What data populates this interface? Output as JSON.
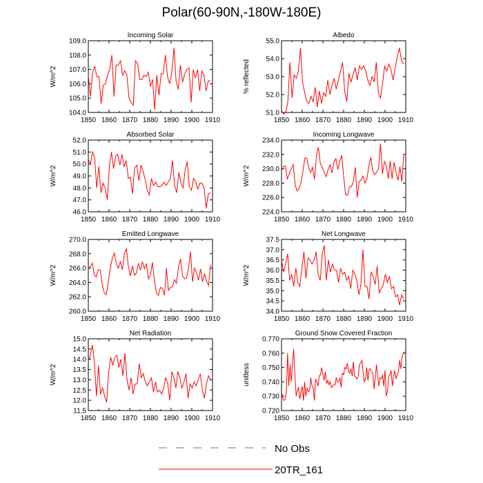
{
  "figure": {
    "title": "Polar(60-90N,-180W-180E)"
  },
  "legend": {
    "items": [
      {
        "label": "No Obs",
        "style": "dashed",
        "color": "#6a6ab0"
      },
      {
        "label": "20TR_161",
        "style": "solid",
        "color": "#ff0000"
      }
    ]
  },
  "colors": {
    "series": "#ff0000",
    "axis": "#000000"
  },
  "chart_data": [
    {
      "type": "line",
      "title": "Incoming Solar",
      "xlabel": "",
      "ylabel": "W/m^2",
      "xlim": [
        1850,
        1910
      ],
      "ylim": [
        104.0,
        109.0
      ],
      "xticks": [
        1850,
        1860,
        1870,
        1880,
        1890,
        1900,
        1910
      ],
      "yticks": [
        "104.0",
        "105.0",
        "106.0",
        "107.0",
        "108.0",
        "109.0"
      ],
      "x_start": 1850,
      "values": [
        106.6,
        105.1,
        106.8,
        107.2,
        106.5,
        106.5,
        104.6,
        105.9,
        106.0,
        106.6,
        107.0,
        108.0,
        105.1,
        107.3,
        107.3,
        107.6,
        106.6,
        106.9,
        106.6,
        105.0,
        104.7,
        104.5,
        107.6,
        107.4,
        106.3,
        106.3,
        106.6,
        106.5,
        106.8,
        105.8,
        106.3,
        104.2,
        106.6,
        105.2,
        106.7,
        106.7,
        108.0,
        106.5,
        106.0,
        106.8,
        108.5,
        106.2,
        105.6,
        107.3,
        106.1,
        106.7,
        107.0,
        107.1,
        104.7,
        107.0,
        106.4,
        107.0,
        105.5,
        106.9,
        106.6,
        105.5,
        106.2,
        106.2
      ]
    },
    {
      "type": "line",
      "title": "Albedo",
      "xlabel": "",
      "ylabel": "% reflected",
      "xlim": [
        1850,
        1910
      ],
      "ylim": [
        51.0,
        55.0
      ],
      "xticks": [
        1850,
        1860,
        1870,
        1880,
        1890,
        1900,
        1910
      ],
      "yticks": [
        "51.0",
        "52.0",
        "53.0",
        "54.0",
        "55.0"
      ],
      "x_start": 1850,
      "values": [
        51.1,
        50.9,
        51.0,
        51.6,
        53.8,
        51.8,
        53.1,
        52.9,
        53.3,
        54.6,
        52.7,
        52.1,
        51.6,
        51.5,
        51.9,
        51.6,
        52.4,
        51.3,
        52.2,
        51.5,
        52.1,
        51.9,
        52.8,
        52.0,
        52.5,
        52.9,
        52.3,
        52.8,
        53.3,
        53.8,
        52.2,
        51.6,
        53.2,
        52.7,
        53.1,
        53.5,
        52.8,
        53.6,
        53.4,
        53.6,
        53.3,
        52.8,
        52.5,
        53.0,
        52.7,
        53.8,
        52.1,
        51.8,
        52.6,
        53.6,
        53.3,
        53.7,
        53.4,
        52.8,
        53.5,
        54.1,
        54.6,
        53.9,
        53.7
      ]
    },
    {
      "type": "line",
      "title": "Absorbed Solar",
      "xlabel": "",
      "ylabel": "W/m^2",
      "xlim": [
        1850,
        1910
      ],
      "ylim": [
        46.0,
        52.0
      ],
      "xticks": [
        1850,
        1860,
        1870,
        1880,
        1890,
        1900,
        1910
      ],
      "yticks": [
        "46.0",
        "47.0",
        "48.0",
        "49.0",
        "50.0",
        "51.0",
        "52.0"
      ],
      "x_start": 1850,
      "values": [
        50.4,
        50.0,
        51.0,
        50.5,
        48.0,
        49.8,
        47.6,
        48.4,
        48.0,
        47.0,
        49.8,
        51.0,
        49.6,
        50.7,
        50.8,
        49.9,
        50.8,
        49.8,
        50.3,
        48.8,
        48.9,
        47.5,
        49.7,
        49.9,
        48.6,
        49.9,
        49.4,
        48.7,
        47.8,
        47.4,
        48.8,
        48.2,
        48.5,
        48.1,
        48.1,
        48.2,
        48.5,
        48.2,
        48.5,
        48.8,
        50.3,
        48.2,
        47.6,
        49.3,
        48.4,
        48.0,
        49.5,
        50.2,
        48.1,
        47.8,
        48.8,
        48.5,
        47.9,
        48.4,
        48.4,
        48.0,
        46.3,
        47.5,
        47.6
      ]
    },
    {
      "type": "line",
      "title": "Incoming Longwave",
      "xlabel": "",
      "ylabel": "W/m^2",
      "xlim": [
        1850,
        1910
      ],
      "ylim": [
        224.0,
        234.0
      ],
      "xticks": [
        1850,
        1860,
        1870,
        1880,
        1890,
        1900,
        1910
      ],
      "yticks": [
        "224.0",
        "226.0",
        "228.0",
        "230.0",
        "232.0",
        "234.0"
      ],
      "x_start": 1850,
      "values": [
        229.7,
        230.3,
        230.4,
        228.6,
        229.3,
        230.0,
        230.6,
        227.8,
        226.9,
        227.2,
        228.0,
        229.6,
        231.5,
        231.5,
        230.1,
        229.5,
        230.2,
        228.5,
        231.8,
        233.0,
        230.7,
        230.2,
        229.5,
        228.9,
        229.9,
        230.6,
        229.4,
        230.9,
        231.4,
        229.9,
        231.0,
        231.9,
        229.0,
        226.4,
        226.3,
        227.5,
        227.5,
        228.2,
        230.2,
        226.0,
        228.2,
        228.4,
        229.0,
        228.0,
        228.6,
        230.4,
        231.6,
        229.7,
        229.2,
        229.5,
        230.0,
        233.5,
        229.3,
        231.0,
        230.4,
        228.6,
        231.1,
        228.6,
        230.9,
        229.5,
        228.4,
        230.3,
        228.2,
        231.9
      ]
    },
    {
      "type": "line",
      "title": "Emitted Longwave",
      "xlabel": "",
      "ylabel": "W/m^2",
      "xlim": [
        1850,
        1910
      ],
      "ylim": [
        260.0,
        270.0
      ],
      "xticks": [
        1850,
        1860,
        1870,
        1880,
        1890,
        1900,
        1910
      ],
      "yticks": [
        "260.0",
        "262.0",
        "264.0",
        "266.0",
        "268.0",
        "270.0"
      ],
      "x_start": 1850,
      "values": [
        266.0,
        266.2,
        266.7,
        265.0,
        264.8,
        265.8,
        265.7,
        263.6,
        262.5,
        262.3,
        264.2,
        266.0,
        267.4,
        268.1,
        266.6,
        266.0,
        266.9,
        265.8,
        268.1,
        268.7,
        266.2,
        264.9,
        266.3,
        265.0,
        265.3,
        266.7,
        265.7,
        266.9,
        265.9,
        266.6,
        264.5,
        265.1,
        266.8,
        264.3,
        262.6,
        262.2,
        263.3,
        263.2,
        262.2,
        266.0,
        262.9,
        263.3,
        263.4,
        264.4,
        263.9,
        266.1,
        267.3,
        264.9,
        264.5,
        264.6,
        266.0,
        268.3,
        264.1,
        266.0,
        265.4,
        264.3,
        265.9,
        264.1,
        265.2,
        264.2,
        263.6,
        266.5
      ]
    },
    {
      "type": "line",
      "title": "Net Longwave",
      "xlabel": "",
      "ylabel": "W/m^2",
      "xlim": [
        1850,
        1910
      ],
      "ylim": [
        34.0,
        37.5
      ],
      "xticks": [
        1850,
        1860,
        1870,
        1880,
        1890,
        1900,
        1910
      ],
      "yticks": [
        "34.0",
        "34.5",
        "35.0",
        "35.5",
        "36.0",
        "36.5",
        "37.0",
        "37.5"
      ],
      "x_start": 1850,
      "values": [
        36.5,
        35.9,
        36.3,
        36.8,
        35.5,
        35.8,
        35.2,
        36.1,
        35.4,
        35.2,
        36.1,
        36.9,
        35.6,
        36.6,
        36.5,
        36.3,
        36.5,
        36.9,
        35.8,
        35.5,
        36.8,
        37.2,
        35.5,
        36.5,
        35.9,
        36.3,
        36.0,
        36.0,
        35.4,
        36.1,
        35.8,
        35.9,
        35.5,
        35.7,
        35.1,
        36.0,
        35.8,
        35.5,
        34.8,
        35.3,
        37.0,
        35.2,
        35.2,
        34.6,
        35.9,
        35.7,
        35.3,
        36.2,
        34.9,
        35.1,
        35.3,
        35.8,
        35.4,
        35.7,
        35.1,
        35.2,
        34.7,
        34.8,
        34.3,
        34.8,
        34.6
      ]
    },
    {
      "type": "line",
      "title": "Net Radiation",
      "xlabel": "",
      "ylabel": "W/m^2",
      "xlim": [
        1850,
        1910
      ],
      "ylim": [
        11.5,
        15.0
      ],
      "xticks": [
        1850,
        1860,
        1870,
        1880,
        1890,
        1900,
        1910
      ],
      "yticks": [
        "11.5",
        "12.0",
        "12.5",
        "13.0",
        "13.5",
        "14.0",
        "14.5",
        "15.0"
      ],
      "x_start": 1850,
      "values": [
        13.9,
        14.2,
        14.7,
        13.8,
        12.2,
        13.7,
        12.3,
        12.6,
        12.2,
        11.9,
        13.4,
        14.1,
        13.7,
        14.1,
        14.2,
        13.6,
        14.0,
        13.2,
        14.3,
        13.0,
        12.5,
        13.1,
        12.3,
        12.8,
        12.8,
        13.8,
        13.1,
        13.3,
        12.9,
        12.7,
        12.9,
        13.1,
        12.4,
        12.9,
        12.4,
        12.5,
        12.3,
        12.6,
        13.1,
        12.8,
        12.0,
        13.4,
        13.1,
        12.6,
        13.4,
        13.1,
        12.6,
        12.9,
        13.3,
        12.1,
        12.8,
        12.6,
        12.9,
        12.7,
        13.0,
        13.3,
        12.5,
        12.1,
        12.8,
        13.2,
        13.0
      ]
    },
    {
      "type": "line",
      "title": "Ground Snow Covered Fraction",
      "xlabel": "",
      "ylabel": "unitless",
      "xlim": [
        1850,
        1910
      ],
      "ylim": [
        0.72,
        0.77
      ],
      "xticks": [
        1850,
        1860,
        1870,
        1880,
        1890,
        1900,
        1910
      ],
      "yticks": [
        "0.720",
        "0.730",
        "0.740",
        "0.750",
        "0.760",
        "0.770"
      ],
      "x_start": 1850,
      "values": [
        0.733,
        0.729,
        0.727,
        0.728,
        0.734,
        0.76,
        0.737,
        0.752,
        0.74,
        0.753,
        0.763,
        0.745,
        0.73,
        0.734,
        0.736,
        0.728,
        0.733,
        0.737,
        0.727,
        0.74,
        0.73,
        0.736,
        0.733,
        0.734,
        0.743,
        0.737,
        0.736,
        0.727,
        0.742,
        0.74,
        0.737,
        0.744,
        0.745,
        0.75,
        0.745,
        0.741,
        0.747,
        0.739,
        0.741,
        0.738,
        0.74,
        0.736,
        0.737,
        0.738,
        0.738,
        0.743,
        0.74,
        0.74,
        0.743,
        0.736,
        0.746,
        0.745,
        0.75,
        0.749,
        0.753,
        0.747,
        0.746,
        0.749,
        0.744,
        0.754,
        0.744,
        0.743,
        0.742,
        0.744,
        0.752,
        0.753,
        0.755,
        0.747,
        0.74,
        0.742,
        0.75,
        0.741,
        0.749,
        0.749,
        0.747,
        0.746,
        0.735,
        0.743,
        0.752,
        0.744,
        0.737,
        0.743,
        0.742,
        0.745,
        0.737,
        0.748,
        0.73,
        0.733,
        0.744,
        0.745,
        0.748,
        0.737,
        0.744,
        0.748,
        0.742,
        0.745,
        0.747,
        0.755,
        0.749,
        0.757,
        0.76,
        0.761
      ]
    }
  ]
}
